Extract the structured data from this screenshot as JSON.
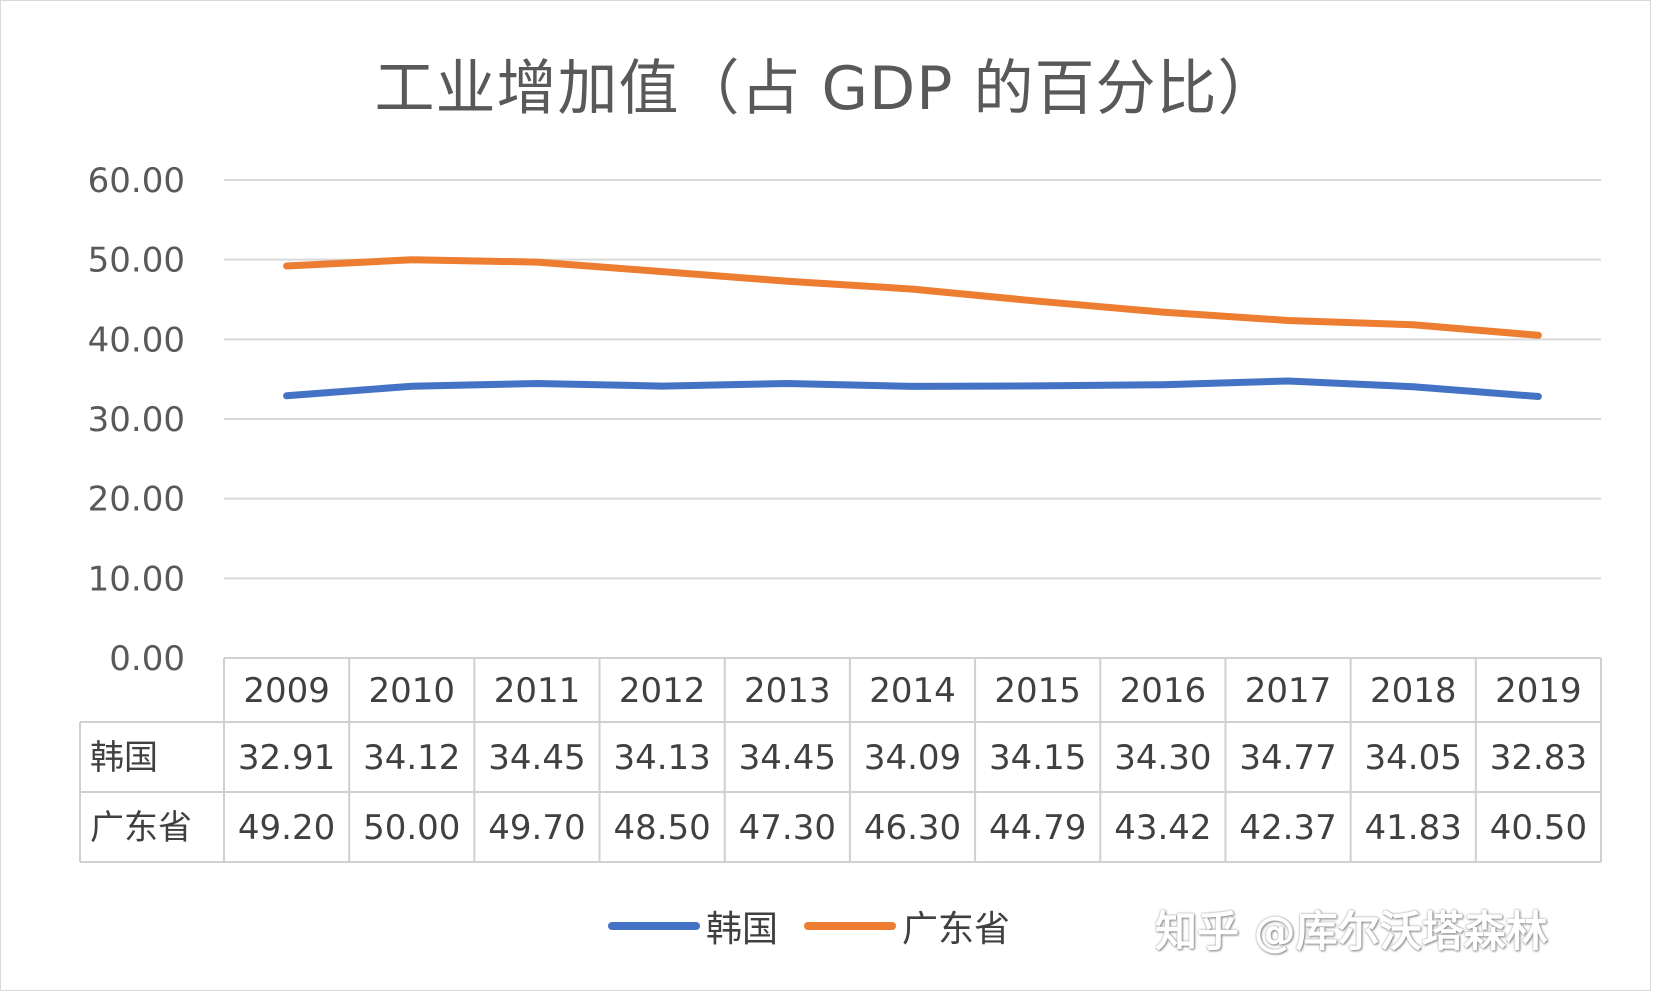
{
  "chart_data": {
    "type": "line",
    "title": "工业增加值（占 GDP 的百分比）",
    "categories": [
      "2009",
      "2010",
      "2011",
      "2012",
      "2013",
      "2014",
      "2015",
      "2016",
      "2017",
      "2018",
      "2019"
    ],
    "series": [
      {
        "name": "韩国",
        "color": "#4472c4",
        "values": [
          32.91,
          34.12,
          34.45,
          34.13,
          34.45,
          34.09,
          34.15,
          34.3,
          34.77,
          34.05,
          32.83
        ],
        "labels": [
          "32.91",
          "34.12",
          "34.45",
          "34.13",
          "34.45",
          "34.09",
          "34.15",
          "34.30",
          "34.77",
          "34.05",
          "32.83"
        ]
      },
      {
        "name": "广东省",
        "color": "#ed7d31",
        "values": [
          49.2,
          50.0,
          49.7,
          48.5,
          47.3,
          46.3,
          44.79,
          43.42,
          42.37,
          41.83,
          40.5
        ],
        "labels": [
          "49.20",
          "50.00",
          "49.70",
          "48.50",
          "47.30",
          "46.30",
          "44.79",
          "43.42",
          "42.37",
          "41.83",
          "40.50"
        ]
      }
    ],
    "ylim": [
      0,
      60
    ],
    "yticks": [
      "0.00",
      "10.00",
      "20.00",
      "30.00",
      "40.00",
      "50.00",
      "60.00"
    ],
    "grid": true,
    "legend": "bottom",
    "data_table": true
  },
  "watermark": "知乎 @库尔沃塔森林"
}
